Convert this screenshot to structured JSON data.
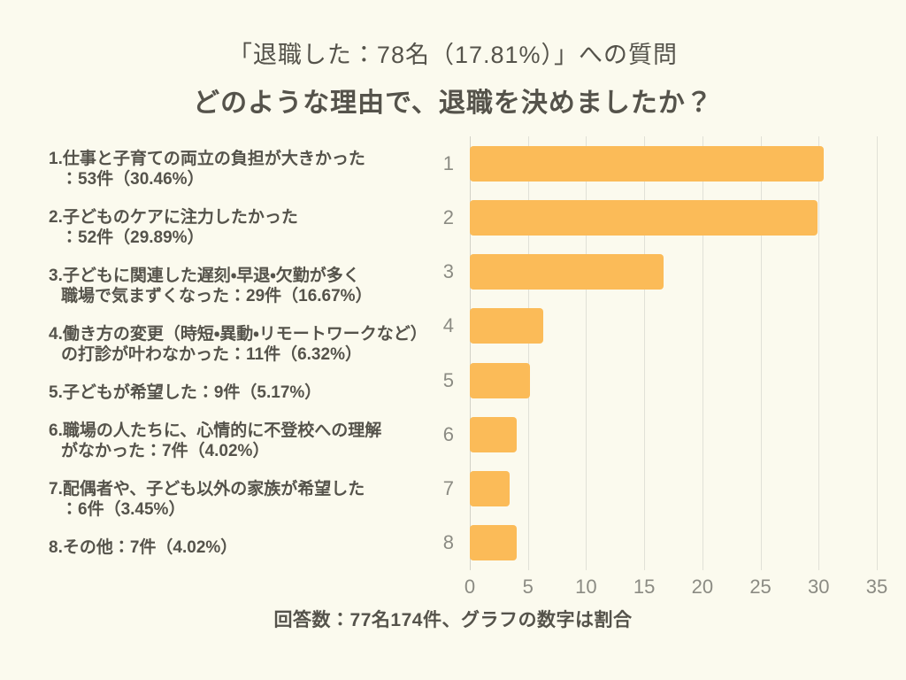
{
  "header": {
    "line1": "「退職した：78名（17.81%）」への質問",
    "line2": "どのような理由で、退職を決めましたか？"
  },
  "legend": {
    "items": [
      {
        "lines": [
          "1.仕事と子育ての両立の負担が大きかった",
          "：53件（30.46%）"
        ]
      },
      {
        "lines": [
          "2.子どものケアに注力したかった",
          "：52件（29.89%）"
        ]
      },
      {
        "lines": [
          "3.子どもに関連した遅刻・早退・欠勤が多く",
          "職場で気まずくなった：29件（16.67%）"
        ]
      },
      {
        "lines": [
          "4.働き方の変更（時短・異動・リモートワークなど）",
          "の打診が叶わなかった：11件（6.32%）"
        ]
      },
      {
        "lines": [
          "5.子どもが希望した：9件（5.17%）"
        ]
      },
      {
        "lines": [
          "6.職場の人たちに、心情的に不登校への理解",
          "がなかった：7件（4.02%）"
        ]
      },
      {
        "lines": [
          "7.配偶者や、子ども以外の家族が希望した",
          "：6件（3.45%）"
        ]
      },
      {
        "lines": [
          "8.その他：7件（4.02%）"
        ]
      }
    ]
  },
  "chart_data": {
    "type": "bar",
    "orientation": "horizontal",
    "title": "どのような理由で、退職を決めましたか？",
    "categories": [
      "1",
      "2",
      "3",
      "4",
      "5",
      "6",
      "7",
      "8"
    ],
    "values": [
      30.46,
      29.89,
      16.67,
      6.32,
      5.17,
      4.02,
      3.45,
      4.02
    ],
    "value_unit": "percent",
    "counts": [
      53,
      52,
      29,
      11,
      9,
      7,
      6,
      7
    ],
    "x_ticks": [
      0,
      5,
      10,
      15,
      20,
      25,
      30,
      35
    ],
    "xlim": [
      0,
      35
    ],
    "xlabel": "",
    "ylabel": "",
    "grid": true,
    "legend_position": "none",
    "bar_color": "#FBBB58"
  },
  "footer": {
    "note": "回答数：77名174件、グラフの数字は割合"
  },
  "colors": {
    "background": "#FBFAEE",
    "bar": "#FBBB58",
    "text": "#55534B",
    "muted_label": "#8B8B83",
    "gridline": "#E1E1D7"
  }
}
